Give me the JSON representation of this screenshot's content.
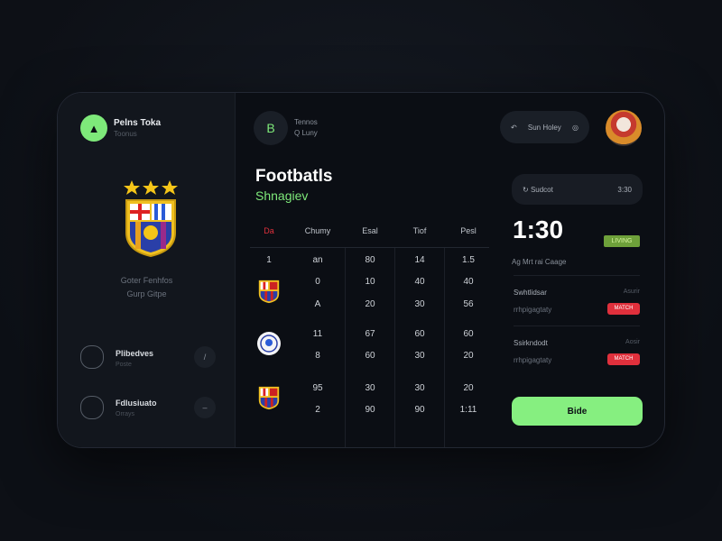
{
  "colors": {
    "accent": "#7ee97a",
    "danger": "#e0303c",
    "live": "#6ea03a"
  },
  "sidebar": {
    "brand": "Pelns Toka",
    "brand_sub": "Toonus",
    "club_name": "Goter Fenhfos",
    "club_sub": "Gurp Gitpe",
    "items": [
      {
        "title": "Plibedves",
        "sub": "Poste",
        "btn": "/"
      },
      {
        "title": "Fdlusiuato",
        "sub": "Orrays",
        "btn": "–"
      }
    ]
  },
  "header": {
    "icon": "B",
    "title": "Tennos",
    "sub": "Q Luny"
  },
  "main": {
    "title": "Footbatls",
    "subtitle": "Shnagiev",
    "columns": [
      "Da",
      "Chumy",
      "Esal",
      "Tiof",
      "Pesl"
    ],
    "rows": [
      {
        "crest": "",
        "cells": [
          "1",
          "an",
          "80",
          "14",
          "1.5"
        ]
      },
      {
        "crest": "barca",
        "cells": [
          "",
          "0",
          "10",
          "40",
          "40"
        ]
      },
      {
        "crest": "",
        "cells": [
          "",
          "A",
          "20",
          "30",
          "56"
        ]
      },
      {
        "crest": "round",
        "cells": [
          "",
          "11",
          "67",
          "60",
          "60"
        ]
      },
      {
        "crest": "",
        "cells": [
          "",
          "8",
          "60",
          "30",
          "20"
        ]
      },
      {
        "crest": "barca",
        "cells": [
          "",
          "95",
          "30",
          "30",
          "20"
        ]
      },
      {
        "crest": "",
        "cells": [
          "",
          "2",
          "90",
          "90",
          "1:11"
        ]
      }
    ]
  },
  "right": {
    "pill_label": "Sun Holey",
    "bar_label": "Sudcot",
    "bar_value": "3:30",
    "time": "1:30",
    "live_badge": "LIVING",
    "note": "Ag Mrt rai Caage",
    "events": [
      {
        "title": "Swhtlidsar",
        "right": "Asurir",
        "sub": "rrhpigagtaty",
        "badge": "MATCH"
      },
      {
        "title": "Ssirkndodt",
        "right": "Aosir",
        "sub": "rrhpigagtaty",
        "badge": "MATCH"
      }
    ],
    "cta": "Bide"
  }
}
